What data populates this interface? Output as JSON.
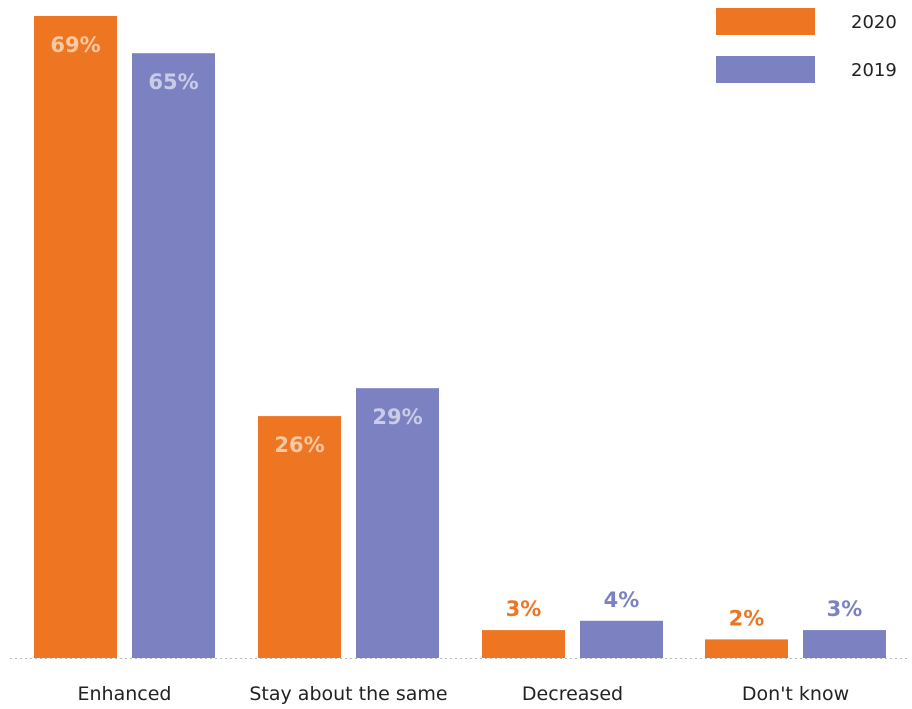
{
  "chart_data": {
    "type": "bar",
    "categories": [
      "Enhanced",
      "Stay about the same",
      "Decreased",
      "Don't know"
    ],
    "series": [
      {
        "name": "2020",
        "color": "#EE7623",
        "values": [
          69,
          26,
          3,
          2
        ],
        "labels": [
          "69%",
          "26%",
          "3%",
          "2%"
        ]
      },
      {
        "name": "2019",
        "color": "#7C82C1",
        "values": [
          65,
          29,
          4,
          3
        ],
        "labels": [
          "65%",
          "29%",
          "4%",
          "3%"
        ]
      }
    ],
    "ylim": [
      0,
      69
    ],
    "grid": false,
    "baseline": "dotted",
    "legend": "top-right",
    "inside_label_color_2020": "#F9C9A4",
    "inside_label_color_2019": "#C9CCE6"
  }
}
